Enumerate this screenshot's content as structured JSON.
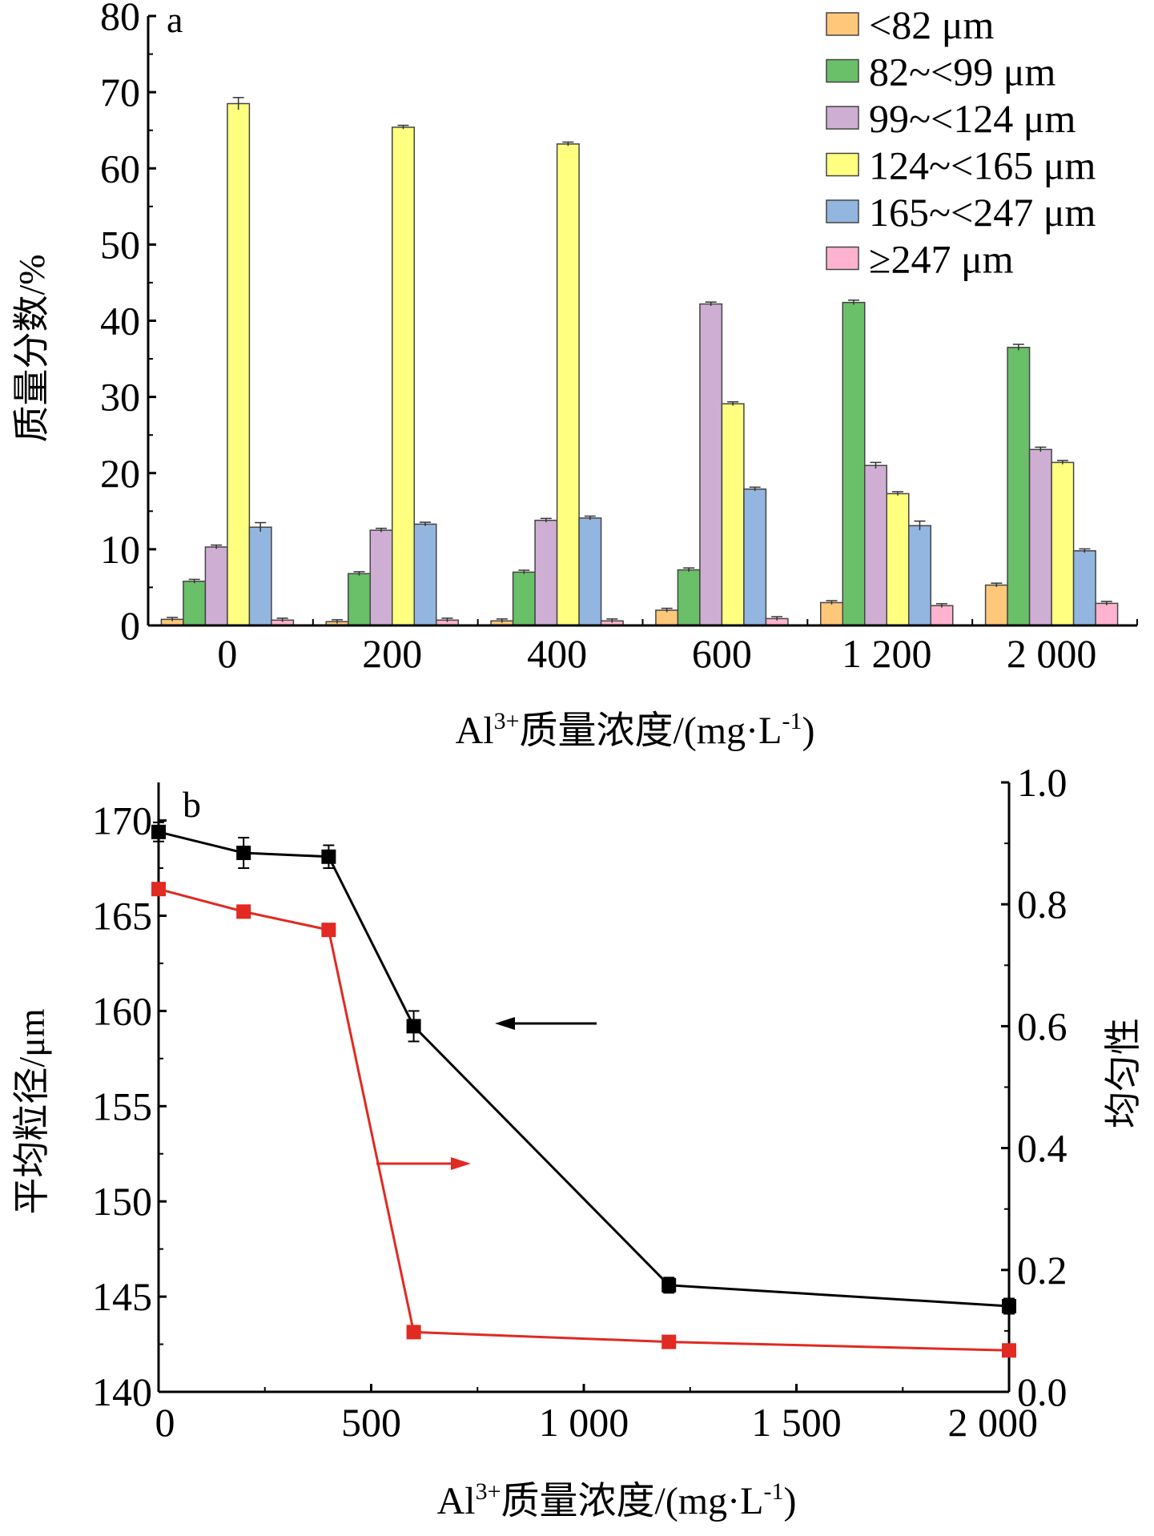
{
  "chart_data": [
    {
      "panel_label": "a",
      "type": "bar",
      "xlabel_main": "Al",
      "xlabel_sup": "3+",
      "xlabel_rest": "质量浓度/(mg·L",
      "xlabel_sup2": "-1",
      "xlabel_end": ")",
      "ylabel": "质量分数/%",
      "ylim": [
        0,
        80
      ],
      "yticks": [
        "0",
        "10",
        "20",
        "30",
        "40",
        "50",
        "60",
        "70",
        "80"
      ],
      "categories": [
        "0",
        "200",
        "400",
        "600",
        "1 200",
        "2 000"
      ],
      "legend_position": "top-right",
      "series": [
        {
          "name": "<82 μm",
          "color": "#ffc77a",
          "values": [
            0.8,
            0.5,
            0.6,
            2.0,
            3.0,
            5.3
          ],
          "errors": [
            0,
            0,
            0,
            0,
            0,
            0
          ]
        },
        {
          "name": "82~<99 μm",
          "color": "#6abf69",
          "values": [
            5.8,
            6.8,
            7.0,
            7.3,
            42.4,
            36.5
          ],
          "errors": [
            0,
            0,
            0,
            0,
            0.3,
            0.4
          ]
        },
        {
          "name": "99~<124 μm",
          "color": "#cfaed3",
          "values": [
            10.3,
            12.5,
            13.8,
            42.2,
            21.0,
            23.1
          ],
          "errors": [
            0,
            0,
            0,
            0,
            0.4,
            0.3
          ]
        },
        {
          "name": "124~<165 μm",
          "color": "#ffff80",
          "values": [
            68.5,
            65.4,
            63.2,
            29.1,
            17.3,
            21.4
          ],
          "errors": [
            0.8,
            0,
            0,
            0,
            0,
            0
          ]
        },
        {
          "name": "165~<247 μm",
          "color": "#92b6e0",
          "values": [
            12.9,
            13.3,
            14.1,
            17.9,
            13.1,
            9.8
          ],
          "errors": [
            0.6,
            0,
            0,
            0,
            0.6,
            0
          ]
        },
        {
          "name": "≥247 μm",
          "color": "#ffb3cf",
          "values": [
            0.7,
            0.7,
            0.6,
            0.9,
            2.6,
            2.9
          ],
          "errors": [
            0,
            0,
            0,
            0,
            0,
            0
          ]
        }
      ]
    },
    {
      "panel_label": "b",
      "type": "line",
      "xlabel_main": "Al",
      "xlabel_sup": "3+",
      "xlabel_rest": "质量浓度/(mg·L",
      "xlabel_sup2": "-1",
      "xlabel_end": ")",
      "ylabel_left": "平均粒径/μm",
      "ylabel_right": "均匀性",
      "xlim": [
        0,
        2000
      ],
      "xticks": [
        {
          "v": 0,
          "t": "0"
        },
        {
          "v": 500,
          "t": "500"
        },
        {
          "v": 1000,
          "t": "1 000"
        },
        {
          "v": 1500,
          "t": "1 500"
        },
        {
          "v": 2000,
          "t": "2 000"
        }
      ],
      "ylim_left": [
        140,
        172
      ],
      "yticks_left": [
        "140",
        "145",
        "150",
        "155",
        "160",
        "165",
        "170"
      ],
      "ylim_right": [
        0,
        1.0
      ],
      "yticks_right": [
        "0.0",
        "0.2",
        "0.4",
        "0.6",
        "0.8",
        "1.0"
      ],
      "series": [
        {
          "axis": "left",
          "color": "#000000",
          "x": [
            0,
            200,
            400,
            600,
            1200,
            2000
          ],
          "y": [
            169.4,
            168.3,
            168.1,
            159.2,
            145.6,
            144.5
          ],
          "errors": [
            0.5,
            0.8,
            0.6,
            0.8,
            0.4,
            0.4
          ]
        },
        {
          "axis": "right",
          "color": "#e02a22",
          "x": [
            0,
            200,
            400,
            600,
            1200,
            2000
          ],
          "y": [
            0.825,
            0.788,
            0.758,
            0.098,
            0.082,
            0.068
          ]
        }
      ]
    }
  ]
}
